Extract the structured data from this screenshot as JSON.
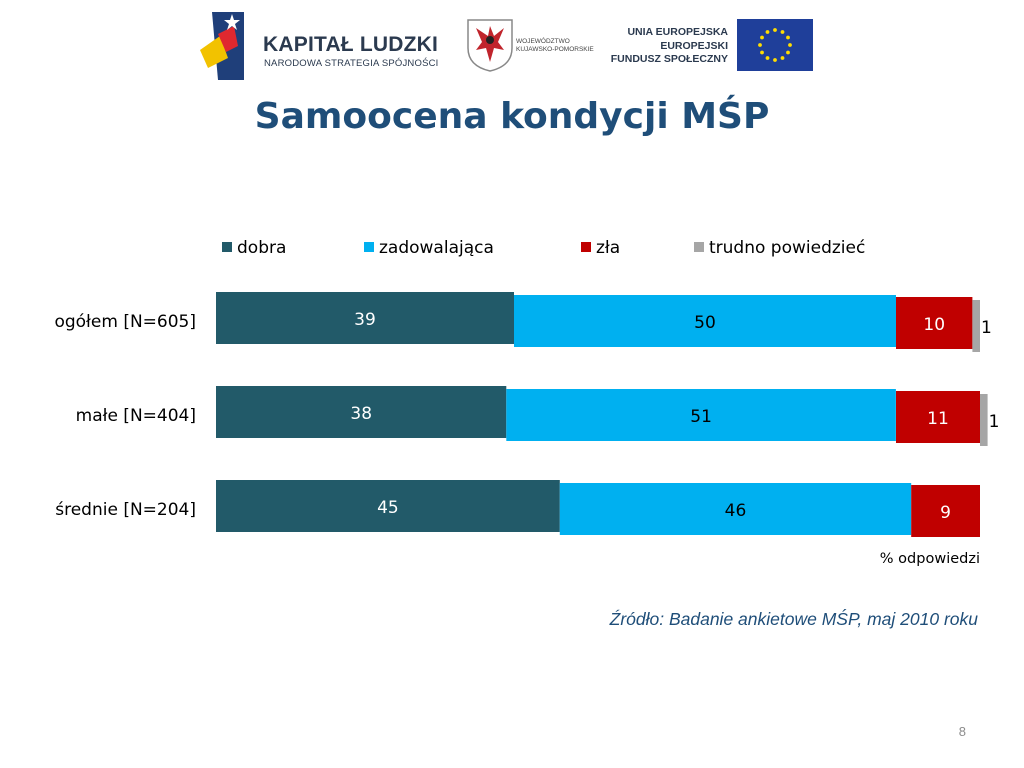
{
  "logos": {
    "kapital_ludzki": {
      "name": "KAPITAŁ LUDZKI",
      "subtitle": "NARODOWA STRATEGIA SPÓJNOŚCI"
    },
    "wojewodztwo": {
      "line1": "WOJEWÓDZTWO",
      "line2": "KUJAWSKO-POMORSKIE"
    },
    "eu": {
      "line1": "UNIA EUROPEJSKA",
      "line2": "EUROPEJSKI",
      "line3": "FUNDUSZ SPOŁECZNY"
    }
  },
  "slide": {
    "title": "Samoocena kondycji MŚP",
    "unit_label": "% odpowiedzi",
    "source": "Źródło: Badanie ankietowe MŚP, maj 2010 roku",
    "page_number": "8"
  },
  "colors": {
    "dobra": "#225a69",
    "zadowalajaca": "#00b0f0",
    "zla": "#c00000",
    "trudno": "#a6a6a6",
    "title": "#1f4e79"
  },
  "chart_data": {
    "type": "bar",
    "orientation": "horizontal",
    "stacked": true,
    "categories": [
      "ogółem [N=605]",
      "małe [N=404]",
      "średnie [N=204]"
    ],
    "series": [
      {
        "name": "dobra",
        "values": [
          39,
          38,
          45
        ]
      },
      {
        "name": "zadowalająca",
        "values": [
          50,
          51,
          46
        ]
      },
      {
        "name": "zła",
        "values": [
          10,
          11,
          9
        ]
      },
      {
        "name": "trudno powiedzieć",
        "values": [
          1,
          1,
          0
        ]
      }
    ],
    "xlim": [
      0,
      100
    ],
    "legend_position": "top",
    "grid": false
  }
}
